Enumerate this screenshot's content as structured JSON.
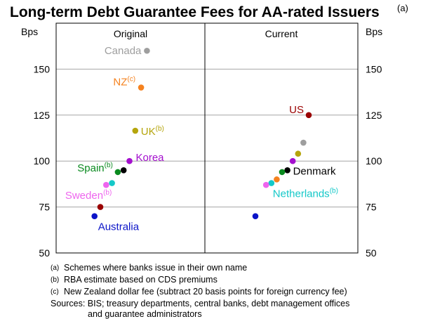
{
  "chart_data": {
    "type": "scatter",
    "title": "Long-term Debt Guarantee Fees for AA-rated Issuers",
    "title_note": "(a)",
    "ylabel_left": "Bps",
    "ylabel_right": "Bps",
    "ylim": [
      50,
      175
    ],
    "yticks": [
      50,
      75,
      100,
      125,
      150
    ],
    "grid": true,
    "panels": [
      {
        "title": "Original",
        "points": [
          {
            "label": "Canada",
            "note": "",
            "value": 160,
            "color": "#9e9e9e",
            "order": 8
          },
          {
            "label": "NZ",
            "note": "(c)",
            "value": 140,
            "color": "#f5821f",
            "order": 7
          },
          {
            "label": "UK",
            "note": "(b)",
            "value": 116.5,
            "color": "#b5a50c",
            "order": 6
          },
          {
            "label": "Korea",
            "note": "",
            "value": 100,
            "color": "#a40fce",
            "order": 5
          },
          {
            "label": "",
            "note": "",
            "value": 95,
            "color": "#000000",
            "order": 4
          },
          {
            "label": "Spain",
            "note": "(b)",
            "value": 94,
            "color": "#0a8a1f",
            "order": 3
          },
          {
            "label": "",
            "note": "",
            "value": 88,
            "color": "#14c8c8",
            "order": 2
          },
          {
            "label": "Sweden",
            "note": "(b)",
            "value": 87,
            "color": "#ee65ee",
            "order": 1
          },
          {
            "label": "",
            "note": "",
            "value": 75,
            "color": "#9a0000",
            "order": 0
          },
          {
            "label": "Australia",
            "note": "",
            "value": 70,
            "color": "#0b14c8",
            "order": -1
          }
        ]
      },
      {
        "title": "Current",
        "points": [
          {
            "label": "US",
            "note": "",
            "value": 125,
            "color": "#9a0000",
            "order": 10
          },
          {
            "label": "",
            "note": "",
            "value": 110,
            "color": "#9e9e9e",
            "order": 9
          },
          {
            "label": "",
            "note": "",
            "value": 104,
            "color": "#b5a50c",
            "order": 8
          },
          {
            "label": "",
            "note": "",
            "value": 100,
            "color": "#a40fce",
            "order": 7
          },
          {
            "label": "Denmark",
            "note": "",
            "value": 95,
            "color": "#000000",
            "order": 6
          },
          {
            "label": "",
            "note": "",
            "value": 94,
            "color": "#0a8a1f",
            "order": 5
          },
          {
            "label": "",
            "note": "",
            "value": 90,
            "color": "#f5821f",
            "order": 4
          },
          {
            "label": "Netherlands",
            "note": "(b)",
            "value": 88,
            "color": "#14c8c8",
            "order": 3
          },
          {
            "label": "",
            "note": "",
            "value": 87,
            "color": "#ee65ee",
            "order": 2
          },
          {
            "label": "",
            "note": "",
            "value": 70,
            "color": "#0b14c8",
            "order": 0
          }
        ]
      }
    ]
  },
  "footnotes": [
    {
      "mark": "(a)",
      "text": "Schemes where banks issue in their own name"
    },
    {
      "mark": "(b)",
      "text": "RBA estimate based on CDS premiums"
    },
    {
      "mark": "(c)",
      "text": "New Zealand dollar fee (subtract 20 basis points for foreign currency fee)"
    }
  ],
  "sources": {
    "line1": "Sources: BIS; treasury departments, central banks, debt management offices",
    "line2": "and guarantee administrators"
  }
}
